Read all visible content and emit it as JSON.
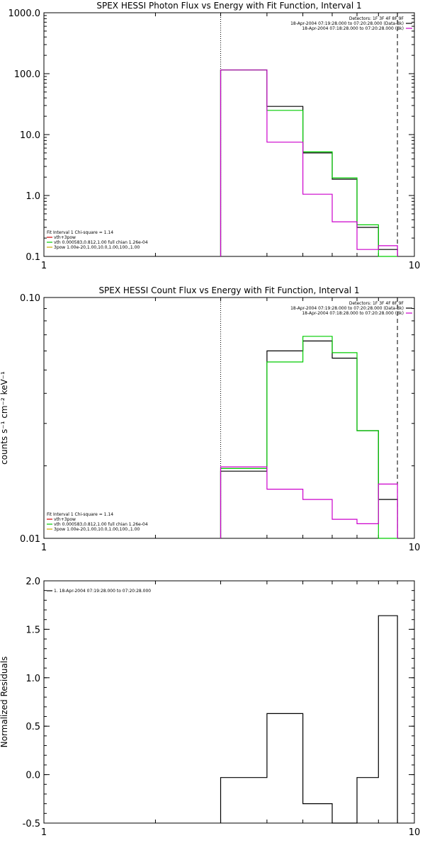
{
  "chart_data": [
    {
      "type": "line",
      "title": "SPEX HESSI Photon Flux vs Energy with Fit Function, Interval 1",
      "xscale": "log",
      "yscale": "log",
      "xlim": [
        1,
        10
      ],
      "ylim": [
        0.1,
        1000
      ],
      "xticks": [
        {
          "v": 1,
          "label": "1"
        },
        {
          "v": 10,
          "label": "10"
        }
      ],
      "yticks": [
        {
          "v": 1000,
          "label": "1000.0"
        },
        {
          "v": 100,
          "label": "100.0"
        },
        {
          "v": 10,
          "label": "10.0"
        },
        {
          "v": 1,
          "label": "1.0"
        },
        {
          "v": 0.1,
          "label": "0.1"
        }
      ],
      "vlines": [
        {
          "x": 3.0,
          "style": "dotted"
        },
        {
          "x": 9.0,
          "style": "dashed"
        }
      ],
      "header_lines": [
        {
          "text": "Detectors: 1F 3F 4F 8F 9F",
          "color": ""
        },
        {
          "text": "18-Apr-2004 07:19:28.000 to 07:20:28.000 (Data-Bk)",
          "color": "#000000"
        },
        {
          "text": "18-Apr-2004 07:18:28.000 to 07:20:28.000 (Bk)",
          "color": "#cc00cc"
        }
      ],
      "legend": [
        {
          "text": "Fit Interval 1    Chi-square = 1.14",
          "color": ""
        },
        {
          "text": "vth+3pow",
          "color": "#cc0000"
        },
        {
          "text": "vth 0.000583,0.812,1.00  full chian 1.26e-04",
          "color": "#00cc00"
        },
        {
          "text": "3pow 1.00e-20,1.00,10.0,1.00,100.,1.00",
          "color": "#ccaa00"
        }
      ],
      "edges": [
        3,
        4,
        5,
        6,
        7,
        8,
        9
      ],
      "series": [
        {
          "color": "#000000",
          "values": [
            115,
            29,
            5.0,
            1.85,
            0.3,
            0.13
          ]
        },
        {
          "color": "#00cc00",
          "values": [
            115,
            25,
            5.2,
            1.95,
            0.33,
            0.1
          ]
        },
        {
          "color": "#cc00cc",
          "values": [
            115,
            7.5,
            1.05,
            0.37,
            0.13,
            0.15
          ]
        }
      ]
    },
    {
      "type": "line",
      "title": "SPEX HESSI Count Flux vs Energy with Fit Function, Interval 1",
      "ylabel": "counts s⁻¹ cm⁻² keV⁻¹",
      "xscale": "log",
      "yscale": "log",
      "xlim": [
        1,
        10
      ],
      "ylim": [
        0.01,
        0.1
      ],
      "xticks": [
        {
          "v": 1,
          "label": "1"
        },
        {
          "v": 10,
          "label": "10"
        }
      ],
      "yticks": [
        {
          "v": 0.1,
          "label": "0.10"
        },
        {
          "v": 0.01,
          "label": "0.01"
        }
      ],
      "vlines": [
        {
          "x": 3.0,
          "style": "dotted"
        },
        {
          "x": 9.0,
          "style": "dashed"
        }
      ],
      "header_lines": [
        {
          "text": "Detectors: 1F 3F 4F 8F 9F",
          "color": ""
        },
        {
          "text": "18-Apr-2004 07:19:28.000 to 07:20:28.000 (Data-Bk)",
          "color": "#000000"
        },
        {
          "text": "18-Apr-2004 07:18:28.000 to 07:20:28.000 (Bk)",
          "color": "#cc00cc"
        }
      ],
      "legend": [
        {
          "text": "Fit Interval 1    Chi-square = 1.14",
          "color": ""
        },
        {
          "text": "vth+3pow",
          "color": "#cc0000"
        },
        {
          "text": "vth 0.000583,0.812,1.00  full chian 1.26e-04",
          "color": "#00cc00"
        },
        {
          "text": "3pow 1.00e-20,1.00,10.0,1.00,100.,1.00",
          "color": "#ccaa00"
        }
      ],
      "edges": [
        3,
        4,
        5,
        6,
        7,
        8,
        9
      ],
      "series": [
        {
          "color": "#000000",
          "values": [
            0.019,
            0.06,
            0.066,
            0.056,
            0.028,
            0.0145
          ]
        },
        {
          "color": "#00cc00",
          "values": [
            0.0195,
            0.054,
            0.069,
            0.059,
            0.028,
            0.0095
          ]
        },
        {
          "color": "#cc00cc",
          "values": [
            0.0198,
            0.016,
            0.0145,
            0.012,
            0.0115,
            0.0168
          ]
        }
      ]
    },
    {
      "type": "line",
      "ylabel": "Normalized Residuals",
      "xscale": "log",
      "yscale": "linear",
      "xlim": [
        1,
        10
      ],
      "ylim": [
        -0.5,
        2.0
      ],
      "xticks": [
        {
          "v": 1,
          "label": "1"
        },
        {
          "v": 10,
          "label": "10"
        }
      ],
      "yticks": [
        {
          "v": 2.0,
          "label": "2.0"
        },
        {
          "v": 1.5,
          "label": "1.5"
        },
        {
          "v": 1.0,
          "label": "1.0"
        },
        {
          "v": 0.5,
          "label": "0.5"
        },
        {
          "v": 0.0,
          "label": "0.0"
        },
        {
          "v": -0.5,
          "label": "-0.5"
        }
      ],
      "header_lines": [],
      "legend": [
        {
          "text": "1. 18-Apr-2004 07:19:28.000 to 07:20:28.000",
          "color": "#000000"
        }
      ],
      "edges": [
        3,
        4,
        5,
        6,
        7,
        8,
        9
      ],
      "series": [
        {
          "color": "#000000",
          "values": [
            -0.03,
            0.63,
            -0.3,
            -0.53,
            -0.03,
            1.64
          ]
        }
      ]
    }
  ]
}
